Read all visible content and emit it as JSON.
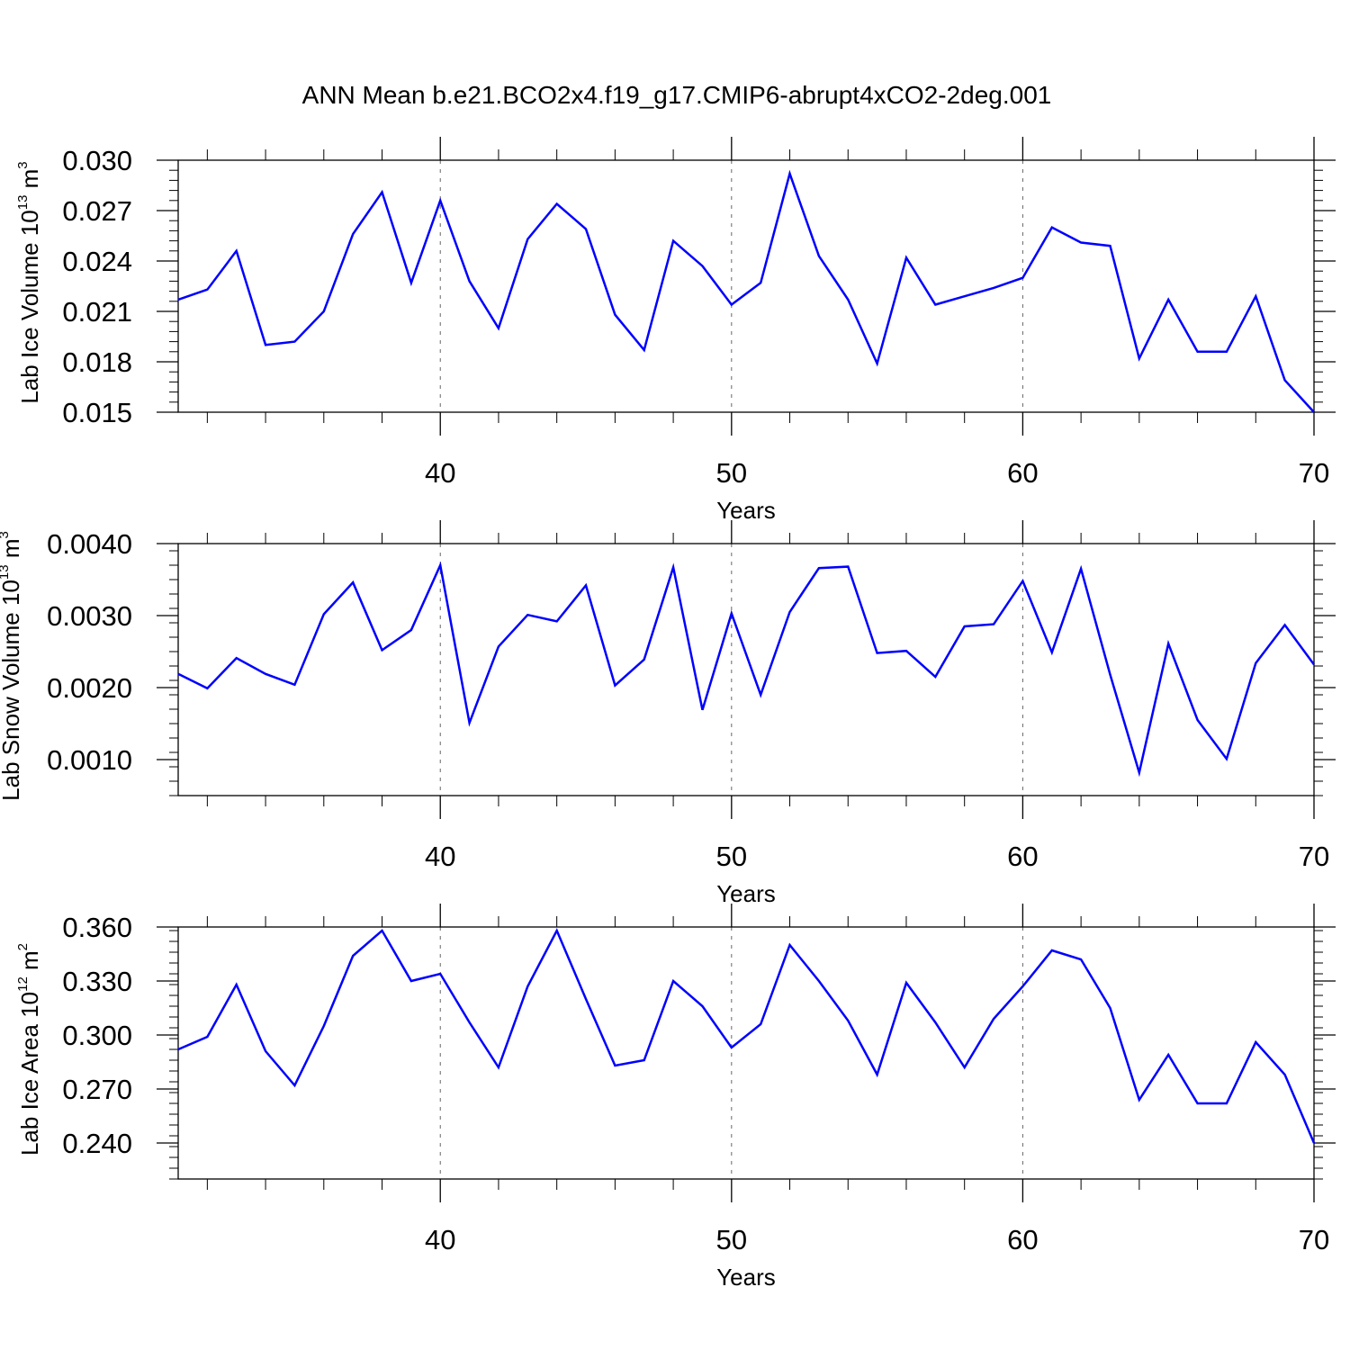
{
  "title": "ANN Mean b.e21.BCO2x4.f19_g17.CMIP6-abrupt4xCO2-2deg.001",
  "colors": {
    "line": "#0000ff",
    "axis": "#000000",
    "grid": "#666666"
  },
  "chart_data": [
    {
      "type": "line",
      "xlabel": "Years",
      "ylabel": {
        "prefix": "Lab Ice Volume 10",
        "exponent": "13",
        "unit": " m",
        "unit_exponent": "3"
      },
      "xlim": [
        31,
        70
      ],
      "ylim": [
        0.015,
        0.03
      ],
      "yticks": [
        0.015,
        0.018,
        0.021,
        0.024,
        0.027,
        0.03
      ],
      "ytick_labels": [
        "0.015",
        "0.018",
        "0.021",
        "0.024",
        "0.027",
        "0.030"
      ],
      "xticks": [
        40,
        50,
        60,
        70
      ],
      "xtick_labels": [
        "40",
        "50",
        "60",
        "70"
      ],
      "grid_x": [
        40,
        50,
        60
      ],
      "x": [
        31,
        32,
        33,
        34,
        35,
        36,
        37,
        38,
        39,
        40,
        41,
        42,
        43,
        44,
        45,
        46,
        47,
        48,
        49,
        50,
        51,
        52,
        53,
        54,
        55,
        56,
        57,
        58,
        59,
        60,
        61,
        62,
        63,
        64,
        65,
        66,
        67,
        68,
        69,
        70
      ],
      "values": [
        0.0217,
        0.0223,
        0.0246,
        0.019,
        0.0192,
        0.021,
        0.0256,
        0.0281,
        0.0227,
        0.0276,
        0.0228,
        0.02,
        0.0253,
        0.0274,
        0.0259,
        0.0208,
        0.0187,
        0.0252,
        0.0237,
        0.0214,
        0.0227,
        0.0292,
        0.0243,
        0.0217,
        0.0179,
        0.0242,
        0.0214,
        0.0219,
        0.0224,
        0.023,
        0.026,
        0.0251,
        0.0249,
        0.0182,
        0.0217,
        0.0186,
        0.0186,
        0.0219,
        0.0169,
        0.015
      ]
    },
    {
      "type": "line",
      "xlabel": "Years",
      "ylabel": {
        "prefix": "Lab Snow Volume 10",
        "exponent": "13",
        "unit": " m",
        "unit_exponent": "3"
      },
      "xlim": [
        31,
        70
      ],
      "ylim": [
        0.0005,
        0.004
      ],
      "yticks": [
        0.001,
        0.002,
        0.003,
        0.004
      ],
      "ytick_labels": [
        "0.0010",
        "0.0020",
        "0.0030",
        "0.0040"
      ],
      "xticks": [
        40,
        50,
        60,
        70
      ],
      "xtick_labels": [
        "40",
        "50",
        "60",
        "70"
      ],
      "grid_x": [
        40,
        50,
        60
      ],
      "x": [
        31,
        32,
        33,
        34,
        35,
        36,
        37,
        38,
        39,
        40,
        41,
        42,
        43,
        44,
        45,
        46,
        47,
        48,
        49,
        50,
        51,
        52,
        53,
        54,
        55,
        56,
        57,
        58,
        59,
        60,
        61,
        62,
        63,
        64,
        65,
        66,
        67,
        68,
        69,
        70
      ],
      "values": [
        0.00219,
        0.00199,
        0.00241,
        0.00219,
        0.00204,
        0.00302,
        0.00346,
        0.00252,
        0.0028,
        0.0037,
        0.00151,
        0.00257,
        0.00301,
        0.00292,
        0.00342,
        0.00203,
        0.00239,
        0.00367,
        0.00169,
        0.00303,
        0.0019,
        0.00305,
        0.00366,
        0.00368,
        0.00248,
        0.00251,
        0.00215,
        0.00285,
        0.00288,
        0.00348,
        0.00249,
        0.00365,
        0.00218,
        0.00082,
        0.00261,
        0.00155,
        0.00101,
        0.00234,
        0.00287,
        0.00232
      ]
    },
    {
      "type": "line",
      "xlabel": "Years",
      "ylabel": {
        "prefix": "Lab Ice Area 10",
        "exponent": "12",
        "unit": " m",
        "unit_exponent": "2"
      },
      "xlim": [
        31,
        70
      ],
      "ylim": [
        0.22,
        0.36
      ],
      "yticks": [
        0.24,
        0.27,
        0.3,
        0.33,
        0.36
      ],
      "ytick_labels": [
        "0.240",
        "0.270",
        "0.300",
        "0.330",
        "0.360"
      ],
      "xticks": [
        40,
        50,
        60,
        70
      ],
      "xtick_labels": [
        "40",
        "50",
        "60",
        "70"
      ],
      "grid_x": [
        40,
        50,
        60
      ],
      "x": [
        31,
        32,
        33,
        34,
        35,
        36,
        37,
        38,
        39,
        40,
        41,
        42,
        43,
        44,
        45,
        46,
        47,
        48,
        49,
        50,
        51,
        52,
        53,
        54,
        55,
        56,
        57,
        58,
        59,
        60,
        61,
        62,
        63,
        64,
        65,
        66,
        67,
        68,
        69,
        70
      ],
      "values": [
        0.292,
        0.299,
        0.328,
        0.291,
        0.272,
        0.305,
        0.344,
        0.358,
        0.33,
        0.334,
        0.307,
        0.282,
        0.327,
        0.358,
        0.32,
        0.283,
        0.286,
        0.33,
        0.316,
        0.293,
        0.306,
        0.35,
        0.33,
        0.308,
        0.278,
        0.329,
        0.307,
        0.282,
        0.309,
        0.327,
        0.347,
        0.342,
        0.315,
        0.264,
        0.289,
        0.262,
        0.262,
        0.296,
        0.278,
        0.24
      ]
    }
  ]
}
